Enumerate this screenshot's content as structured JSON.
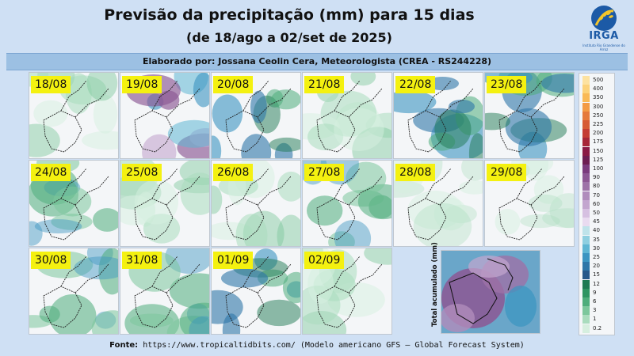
{
  "header": {
    "title": "Previsão da precipitação (mm) para 15 dias",
    "subtitle": "(de 18/ago a 02/set de 2025)",
    "logo_text": "IRGA",
    "logo_caption": "Instituto Rio Grandense do Arroz"
  },
  "author_line": "Elaborado por: Jossana Ceolin Cera, Meteorologista (CREA - RS244228)",
  "panels": [
    {
      "date": "18/08",
      "intensity": "low"
    },
    {
      "date": "19/08",
      "intensity": "very-high"
    },
    {
      "date": "20/08",
      "intensity": "high"
    },
    {
      "date": "21/08",
      "intensity": "low"
    },
    {
      "date": "22/08",
      "intensity": "high"
    },
    {
      "date": "23/08",
      "intensity": "high"
    },
    {
      "date": "24/08",
      "intensity": "medium"
    },
    {
      "date": "25/08",
      "intensity": "low"
    },
    {
      "date": "26/08",
      "intensity": "low"
    },
    {
      "date": "27/08",
      "intensity": "medium"
    },
    {
      "date": "28/08",
      "intensity": "very-low"
    },
    {
      "date": "29/08",
      "intensity": "very-low"
    },
    {
      "date": "30/08",
      "intensity": "medium"
    },
    {
      "date": "31/08",
      "intensity": "medium"
    },
    {
      "date": "01/09",
      "intensity": "high"
    },
    {
      "date": "02/09",
      "intensity": "low"
    }
  ],
  "accumulated_label": "Total acumulado (mm)",
  "colorbar": {
    "labels": [
      "500",
      "400",
      "350",
      "300",
      "250",
      "225",
      "200",
      "175",
      "150",
      "125",
      "100",
      "90",
      "80",
      "70",
      "60",
      "50",
      "45",
      "40",
      "35",
      "30",
      "25",
      "20",
      "15",
      "12",
      "9",
      "6",
      "3",
      "1",
      "0.2"
    ],
    "colors": [
      "#fde2a0",
      "#fcd27a",
      "#f9b956",
      "#f39b45",
      "#e57a3c",
      "#d65a35",
      "#c43c33",
      "#a62637",
      "#8a1a44",
      "#6d1e52",
      "#7a3b7d",
      "#8c5794",
      "#9d72a8",
      "#b08cbc",
      "#c3a6cf",
      "#d6c0e1",
      "#e9dbf0",
      "#bfe3ea",
      "#8fcfe0",
      "#5fb6d3",
      "#3b95c1",
      "#2d76a8",
      "#26588a",
      "#1f7a53",
      "#2f9462",
      "#4fad7c",
      "#7cc79c",
      "#a9dcbd",
      "#d6efdf"
    ]
  },
  "footer": {
    "label": "Fonte:",
    "text": "https://www.tropicaltidbits.com/ (Modelo americano GFS – Global Forecast System)"
  }
}
